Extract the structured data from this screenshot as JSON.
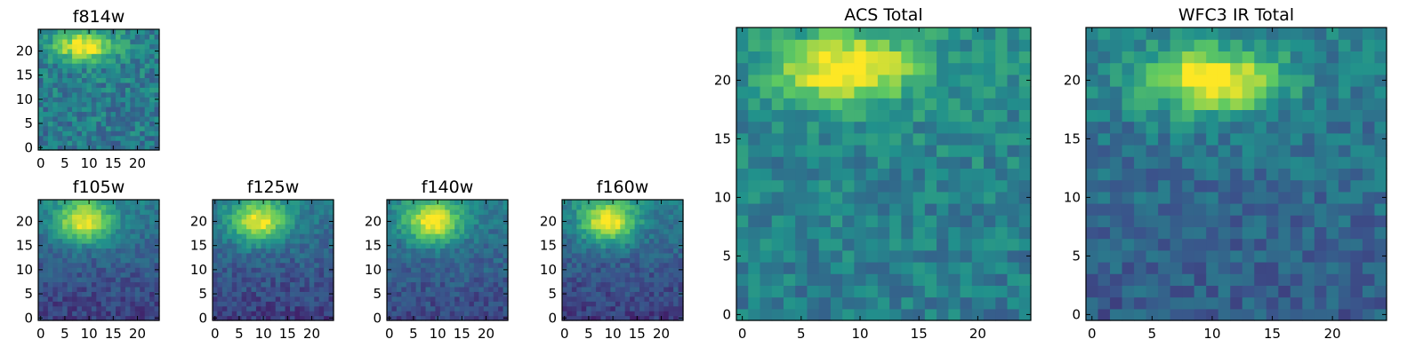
{
  "figure": {
    "colormap": "viridis",
    "colormap_stops": [
      "#440154",
      "#3b528b",
      "#21918c",
      "#5ec962",
      "#fde725"
    ]
  },
  "chart_data": [
    {
      "type": "heatmap",
      "title": "f814w",
      "grid_size": 25,
      "xticks": [
        0,
        5,
        10,
        15,
        20
      ],
      "yticks": [
        0,
        5,
        10,
        15,
        20
      ],
      "xlim": [
        -0.5,
        24.5
      ],
      "ylim": [
        -0.5,
        24.5
      ],
      "peak": [
        9,
        21
      ],
      "peak_width": [
        4,
        2
      ],
      "background": 0.42,
      "noise": 0.14,
      "vertical_gradient": 0.05
    },
    {
      "type": "heatmap",
      "title": "f105w",
      "grid_size": 25,
      "xticks": [
        0,
        5,
        10,
        15,
        20
      ],
      "yticks": [
        0,
        5,
        10,
        15,
        20
      ],
      "xlim": [
        -0.5,
        24.5
      ],
      "ylim": [
        -0.5,
        24.5
      ],
      "peak": [
        9,
        20
      ],
      "peak_width": [
        4,
        3
      ],
      "background": 0.3,
      "noise": 0.09,
      "vertical_gradient": 0.24
    },
    {
      "type": "heatmap",
      "title": "f125w",
      "grid_size": 25,
      "xticks": [
        0,
        5,
        10,
        15,
        20
      ],
      "yticks": [
        0,
        5,
        10,
        15,
        20
      ],
      "xlim": [
        -0.5,
        24.5
      ],
      "ylim": [
        -0.5,
        24.5
      ],
      "peak": [
        9,
        20
      ],
      "peak_width": [
        4,
        3
      ],
      "background": 0.3,
      "noise": 0.09,
      "vertical_gradient": 0.24
    },
    {
      "type": "heatmap",
      "title": "f140w",
      "grid_size": 25,
      "xticks": [
        0,
        5,
        10,
        15,
        20
      ],
      "yticks": [
        0,
        5,
        10,
        15,
        20
      ],
      "xlim": [
        -0.5,
        24.5
      ],
      "ylim": [
        -0.5,
        24.5
      ],
      "peak": [
        9,
        20
      ],
      "peak_width": [
        4,
        3
      ],
      "background": 0.32,
      "noise": 0.09,
      "vertical_gradient": 0.22
    },
    {
      "type": "heatmap",
      "title": "f160w",
      "grid_size": 25,
      "xticks": [
        0,
        5,
        10,
        15,
        20
      ],
      "yticks": [
        0,
        5,
        10,
        15,
        20
      ],
      "xlim": [
        -0.5,
        24.5
      ],
      "ylim": [
        -0.5,
        24.5
      ],
      "peak": [
        9,
        20
      ],
      "peak_width": [
        4,
        3
      ],
      "background": 0.3,
      "noise": 0.09,
      "vertical_gradient": 0.24
    },
    {
      "type": "heatmap",
      "title": "ACS Total",
      "grid_size": 25,
      "xticks": [
        0,
        5,
        10,
        15,
        20
      ],
      "yticks": [
        0,
        5,
        10,
        15,
        20
      ],
      "xlim": [
        -0.5,
        24.5
      ],
      "ylim": [
        -0.5,
        24.5
      ],
      "peak": [
        9,
        21
      ],
      "peak_width": [
        4,
        2
      ],
      "background": 0.45,
      "noise": 0.12,
      "vertical_gradient": 0.08
    },
    {
      "type": "heatmap",
      "title": "WFC3 IR Total",
      "grid_size": 25,
      "xticks": [
        0,
        5,
        10,
        15,
        20
      ],
      "yticks": [
        0,
        5,
        10,
        15,
        20
      ],
      "xlim": [
        -0.5,
        24.5
      ],
      "ylim": [
        -0.5,
        24.5
      ],
      "peak": [
        10,
        20
      ],
      "peak_width": [
        4,
        2
      ],
      "background": 0.36,
      "noise": 0.11,
      "vertical_gradient": 0.14
    }
  ]
}
